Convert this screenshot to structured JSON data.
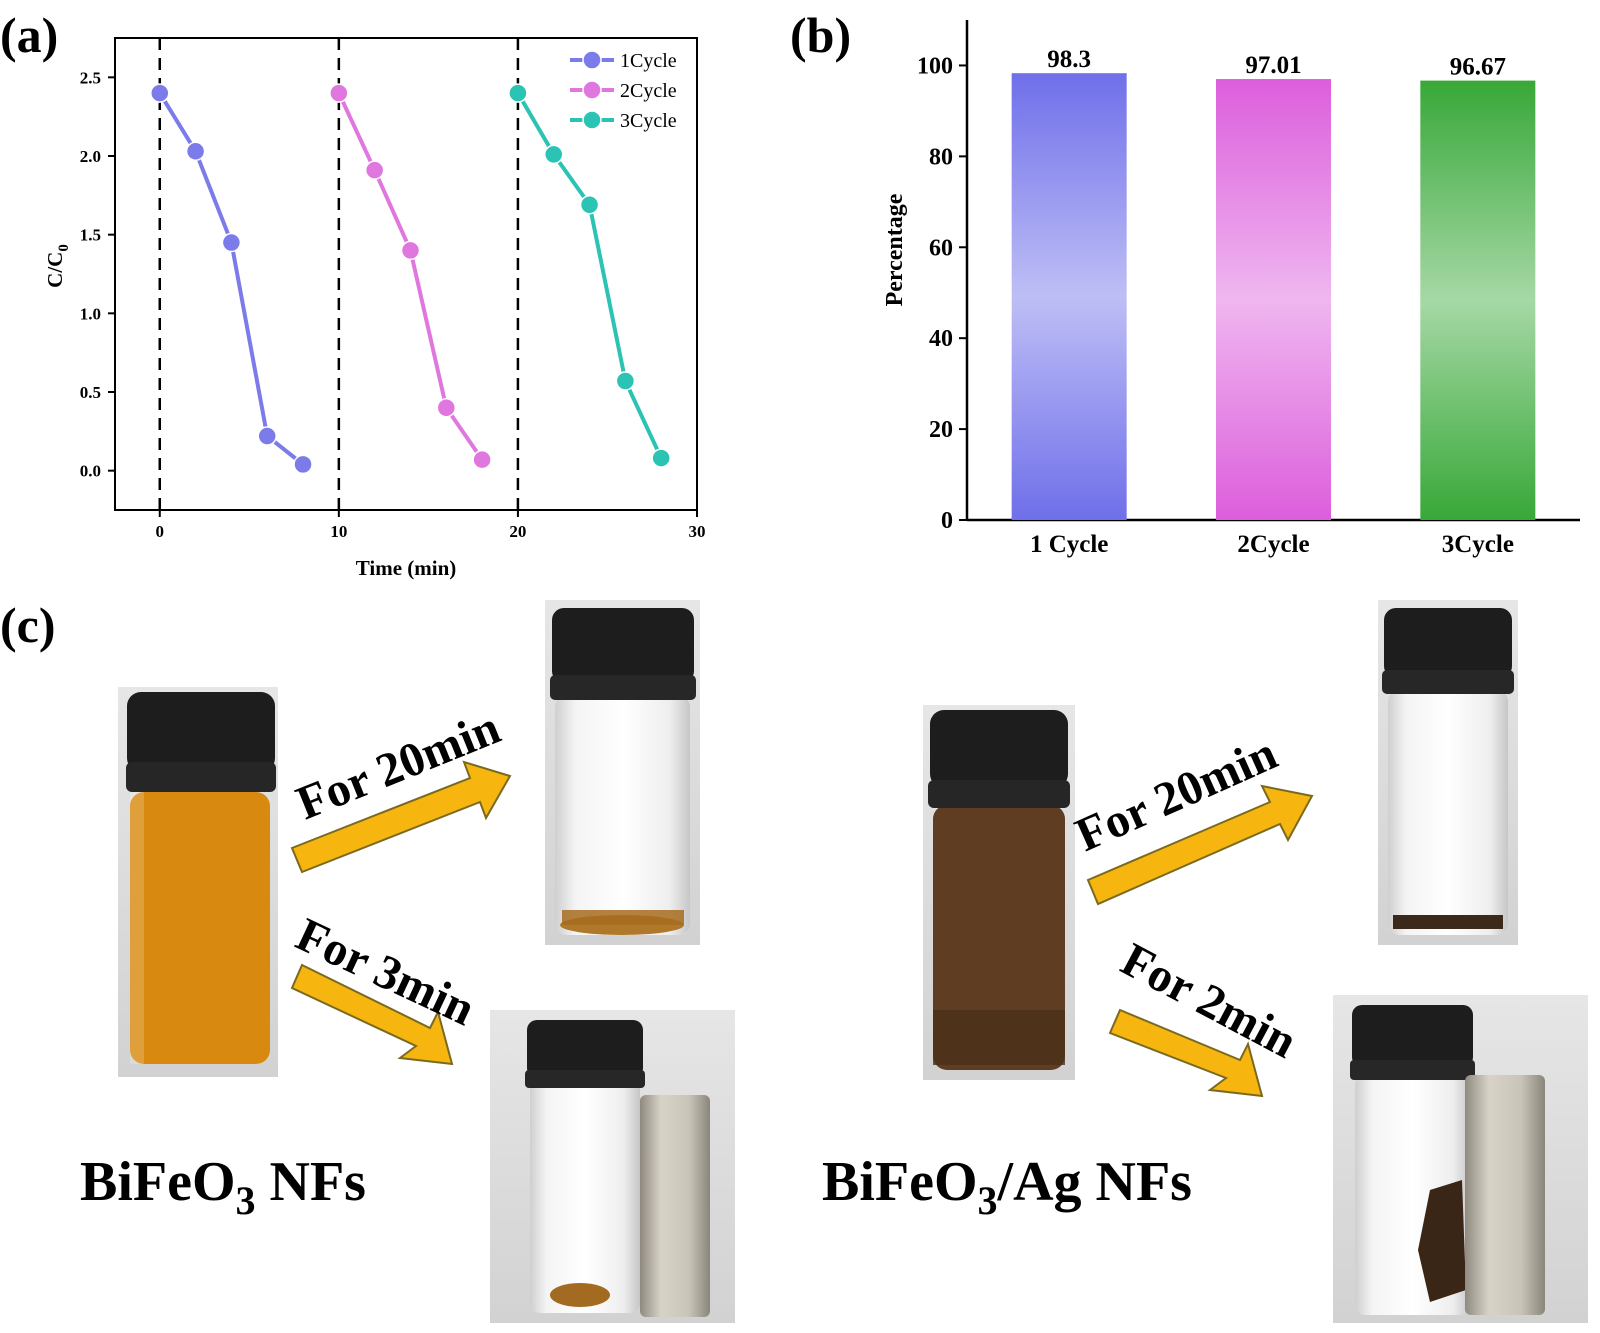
{
  "panels": {
    "a": "(a)",
    "b": "(b)",
    "c": "(c)"
  },
  "chart_data": [
    {
      "type": "line",
      "panel": "a",
      "xlabel": "Time (min)",
      "ylabel": "C/C",
      "ylabel_sub": "0",
      "xlim": [
        -2.5,
        30
      ],
      "ylim": [
        -0.25,
        2.75
      ],
      "xticks": [
        0,
        10,
        20,
        30
      ],
      "yticks": [
        0.0,
        0.5,
        1.0,
        1.5,
        2.0,
        2.5
      ],
      "ytick_labels": [
        "0.0",
        "0.5",
        "1.0",
        "1.5",
        "2.0",
        "2.5"
      ],
      "dashed_vlines": [
        0,
        10,
        20
      ],
      "legend_position": "top-right",
      "series": [
        {
          "name": "1Cycle",
          "color": "#7b7bea",
          "x": [
            0,
            2,
            4,
            6,
            8
          ],
          "y": [
            2.4,
            2.03,
            1.45,
            0.22,
            0.04
          ]
        },
        {
          "name": "2Cycle",
          "color": "#df77df",
          "x": [
            10,
            12,
            14,
            16,
            18
          ],
          "y": [
            2.4,
            1.91,
            1.4,
            0.4,
            0.07
          ]
        },
        {
          "name": "3Cycle",
          "color": "#2bc3b3",
          "x": [
            20,
            22,
            24,
            26,
            28
          ],
          "y": [
            2.4,
            2.01,
            1.69,
            0.57,
            0.08
          ]
        }
      ]
    },
    {
      "type": "bar",
      "panel": "b",
      "categories": [
        "1 Cycle",
        "2Cycle",
        "3Cycle"
      ],
      "values": [
        98.3,
        97.01,
        96.67
      ],
      "value_labels": [
        "98.3",
        "97.01",
        "96.67"
      ],
      "colors": [
        "#6f6fea",
        "#dc5edc",
        "#38a838"
      ],
      "ylabel": "Percentage",
      "xlabel": "",
      "ylim": [
        0,
        110
      ],
      "yticks": [
        0,
        20,
        40,
        60,
        80,
        100
      ]
    }
  ],
  "photos": {
    "left": {
      "label": "BiFeO",
      "label_sub": "3",
      "label_tail": " NFs",
      "arrow_top": "For 20min",
      "arrow_bottom": "For 3min",
      "liquid_color": "#d88a10",
      "arrow_color": "#f7b510"
    },
    "right": {
      "label": "BiFeO",
      "label_sub": "3",
      "label_tail": "/Ag NFs",
      "arrow_top": "For 20min",
      "arrow_bottom": "For 2min",
      "liquid_color": "#5e3d22",
      "arrow_color": "#f7b510"
    }
  }
}
